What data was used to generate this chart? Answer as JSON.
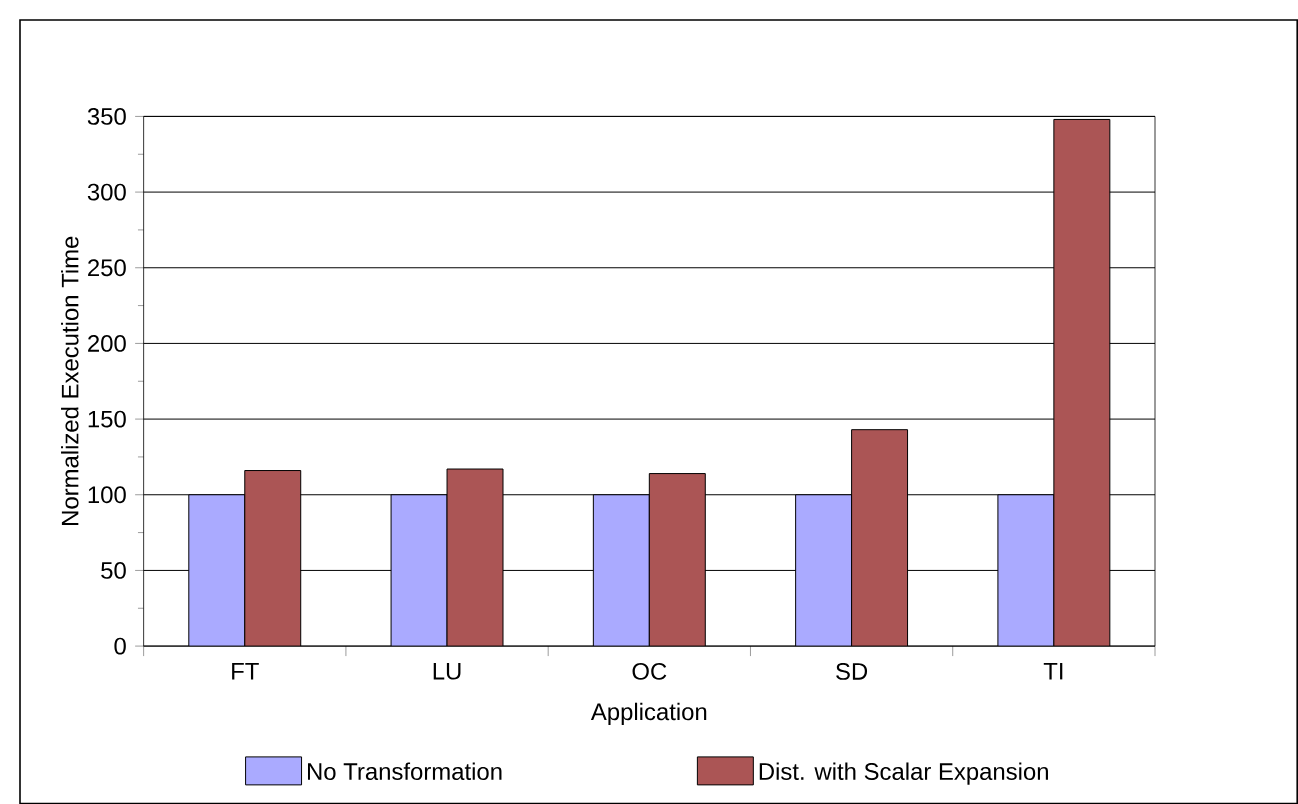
{
  "chart_data": {
    "type": "bar",
    "xlabel": "Application",
    "ylabel": "Normalized Execution Time",
    "categories": [
      "FT",
      "LU",
      "OC",
      "SD",
      "TI"
    ],
    "series": [
      {
        "name": "No Transformation",
        "color": "#aaaaff",
        "values": [
          100,
          100,
          100,
          100,
          100
        ]
      },
      {
        "name": "Dist. with Scalar Expansion",
        "color": "#ab5555",
        "values": [
          116,
          117,
          114,
          143,
          348
        ]
      }
    ],
    "ylim": [
      0,
      350
    ],
    "yticks": [
      0,
      50,
      100,
      150,
      200,
      250,
      300,
      350
    ],
    "grid": "y",
    "legend": "bottom"
  }
}
